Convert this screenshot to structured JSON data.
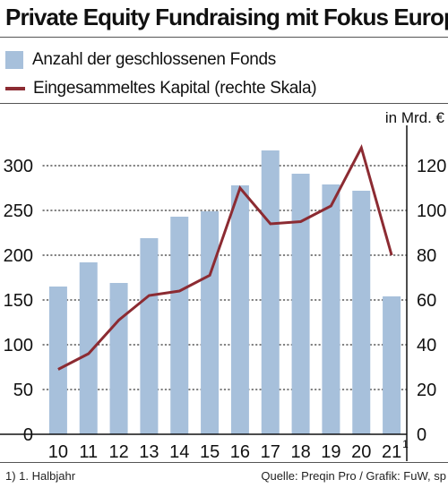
{
  "title": "Private Equity Fundraising mit Fokus Europa",
  "legend": {
    "bars": "Anzahl der geschlossenen Fonds",
    "line": "Eingesammeltes Kapital  (rechte Skala)"
  },
  "right_axis_unit": "in Mrd. €",
  "footnote": "1) 1. Halbjahr",
  "source": "Quelle: Preqin Pro / Grafik: FuW, sp",
  "colors": {
    "bars": "#a7c0db",
    "line": "#8c2b32"
  },
  "chart_data": {
    "type": "bar",
    "categories": [
      "10",
      "11",
      "12",
      "13",
      "14",
      "15",
      "16",
      "17",
      "18",
      "19",
      "20",
      "21"
    ],
    "category_superscripts": [
      "",
      "",
      "",
      "",
      "",
      "",
      "",
      "",
      "",
      "",
      "",
      "1"
    ],
    "series": [
      {
        "name": "Anzahl der geschlossenen Fonds",
        "type": "bar",
        "axis": "left",
        "values": [
          165,
          192,
          169,
          219,
          243,
          249,
          278,
          317,
          291,
          279,
          272,
          154
        ]
      },
      {
        "name": "Eingesammeltes Kapital  (rechte Skala)",
        "type": "line",
        "axis": "right",
        "values": [
          29,
          36,
          51,
          62,
          64,
          71,
          110,
          94,
          95,
          102,
          128,
          80
        ]
      }
    ],
    "y_left": {
      "range": [
        0,
        330
      ],
      "ticks": [
        0,
        50,
        100,
        150,
        200,
        250,
        300
      ]
    },
    "y_right": {
      "range": [
        0,
        132
      ],
      "ticks": [
        0,
        20,
        40,
        60,
        80,
        100,
        120
      ]
    },
    "grid": "horizontal dotted",
    "legend_position": "top-left"
  }
}
